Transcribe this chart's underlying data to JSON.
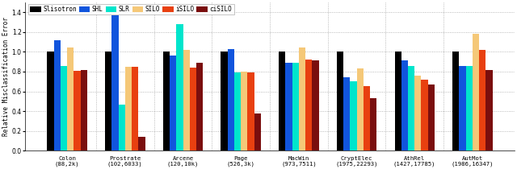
{
  "categories": [
    "Colon\n(88,2k)",
    "Prostrate\n(102,6033)",
    "Arcene\n(120,10k)",
    "Page\n(526,3k)",
    "MacWin\n(973,7511)",
    "CryptElec\n(1975,22293)",
    "AthRel\n(1427,17785)",
    "AutMot\n(1986,16347)"
  ],
  "methods": [
    "Slisotron",
    "SHL",
    "SLR",
    "SILO",
    "iSILO",
    "ciSILO"
  ],
  "colors": [
    "#000000",
    "#1155dd",
    "#00e5cc",
    "#f5c878",
    "#e84010",
    "#7a0e0e"
  ],
  "values": [
    [
      1.0,
      1.12,
      0.86,
      1.04,
      0.81,
      0.82
    ],
    [
      1.0,
      1.37,
      0.47,
      0.85,
      0.85,
      0.14
    ],
    [
      1.0,
      0.96,
      1.28,
      1.02,
      0.84,
      0.89
    ],
    [
      1.0,
      1.03,
      0.79,
      0.8,
      0.79,
      0.38
    ],
    [
      1.0,
      0.89,
      0.89,
      1.04,
      0.92,
      0.91
    ],
    [
      1.0,
      0.74,
      0.7,
      0.83,
      0.65,
      0.53
    ],
    [
      1.0,
      0.91,
      0.86,
      0.76,
      0.72,
      0.67
    ],
    [
      1.0,
      0.86,
      0.86,
      1.18,
      1.02,
      0.82
    ]
  ],
  "ylabel": "Relative Misclassification Error",
  "ylim": [
    0,
    1.5
  ],
  "yticks": [
    0,
    0.2,
    0.4,
    0.6,
    0.8,
    1.0,
    1.2,
    1.4
  ],
  "figsize": [
    6.4,
    2.1
  ],
  "dpi": 100,
  "background_color": "#ffffff"
}
